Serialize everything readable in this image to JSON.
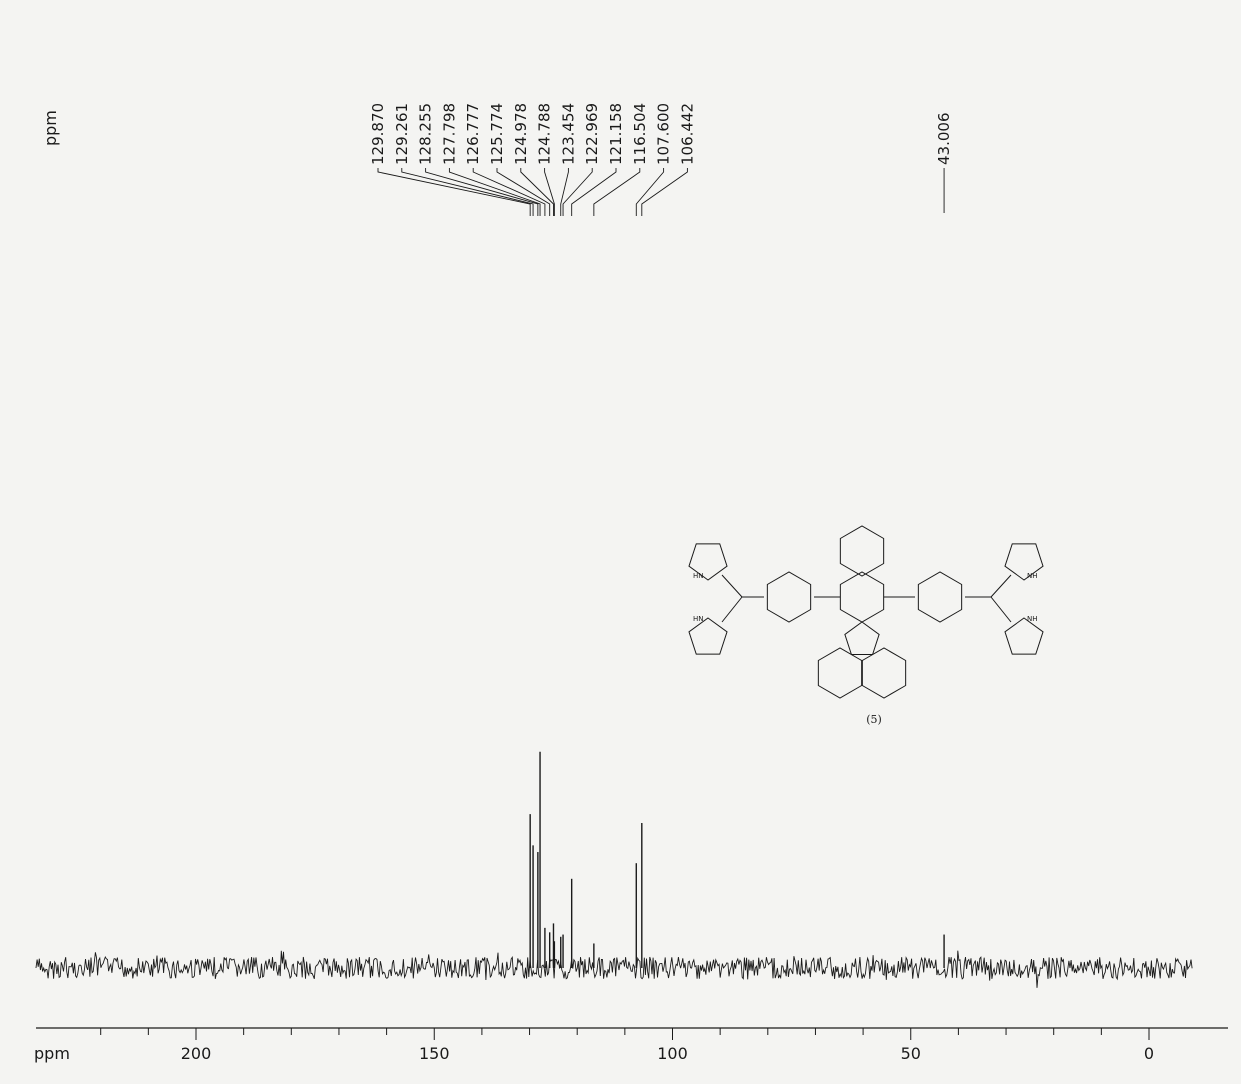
{
  "chart_data": {
    "type": "line",
    "xlabel": "ppm",
    "peak_label_axis": "ppm",
    "x_axis_reversed": true,
    "xlim": [
      225,
      -8
    ],
    "x_ticks": [
      200,
      150,
      100,
      50,
      0
    ],
    "peaks": [
      {
        "ppm": 129.87,
        "label": "129.870",
        "height": 0.69
      },
      {
        "ppm": 129.261,
        "label": "129.261",
        "height": 0.55
      },
      {
        "ppm": 128.255,
        "label": "128.255",
        "height": 0.52
      },
      {
        "ppm": 127.798,
        "label": "127.798",
        "height": 0.97
      },
      {
        "ppm": 126.777,
        "label": "126.777",
        "height": 0.18
      },
      {
        "ppm": 125.774,
        "label": "125.774",
        "height": 0.16
      },
      {
        "ppm": 124.978,
        "label": "124.978",
        "height": 0.2
      },
      {
        "ppm": 124.788,
        "label": "124.788",
        "height": 0.12
      },
      {
        "ppm": 123.454,
        "label": "123.454",
        "height": 0.14
      },
      {
        "ppm": 122.969,
        "label": "122.969",
        "height": 0.15
      },
      {
        "ppm": 121.158,
        "label": "121.158",
        "height": 0.4
      },
      {
        "ppm": 116.504,
        "label": "116.504",
        "height": 0.11
      },
      {
        "ppm": 107.6,
        "label": "107.600",
        "height": 0.47
      },
      {
        "ppm": 106.442,
        "label": "106.442",
        "height": 0.65
      },
      {
        "ppm": 43.006,
        "label": "43.006",
        "height": 0.15
      }
    ],
    "compound_label": "(5)",
    "atom_labels": [
      "HN",
      "HN",
      "NH",
      "NH"
    ]
  }
}
